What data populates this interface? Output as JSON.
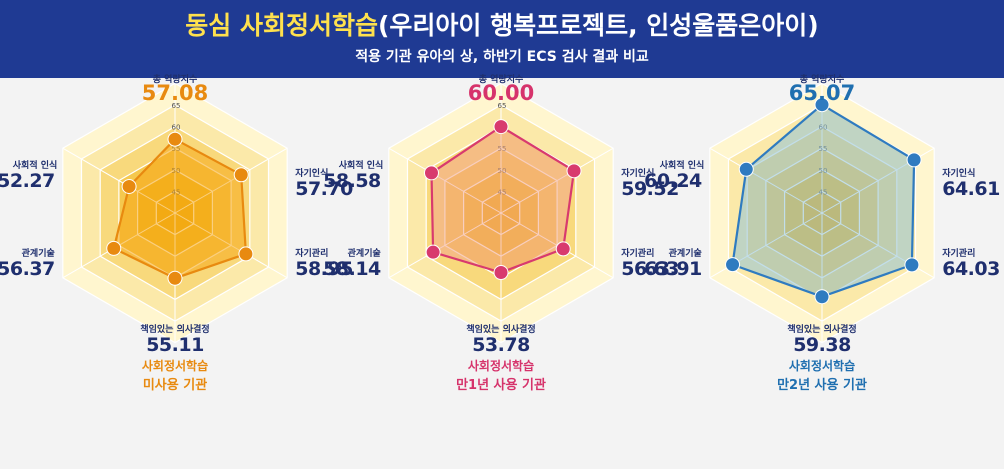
{
  "header": {
    "title_highlight": "동심 사회정서학습",
    "title_rest": "(우리아이 행복프로젝트, 인성울품은아이)",
    "subtitle": "적용 기관 유아의 상, 하반기 ECS 검사 결과 비교"
  },
  "chart_data": [
    {
      "type": "radar",
      "total_label": "총 역량지수",
      "total_value": "57.08",
      "group_line1": "사회정서학습",
      "group_line2": "미사용 기관",
      "axes": [
        "총 역량지수",
        "자기인식",
        "자기관리",
        "책임있는 의사결정",
        "관계기술",
        "사회적 인식"
      ],
      "values": [
        57.08,
        57.7,
        58.95,
        55.11,
        56.37,
        52.27
      ],
      "value_labels": [
        "57.08",
        "57.70",
        "58.95",
        "55.11",
        "56.37",
        "52.27"
      ],
      "tick_labels": [
        "45",
        "50",
        "55",
        "60",
        "65"
      ],
      "rlim": [
        40,
        65
      ],
      "series_color": "#e88a10",
      "fill_color": "#f6a817",
      "accent_color": "#e88a10"
    },
    {
      "type": "radar",
      "total_label": "총 역량지수",
      "total_value": "60.00",
      "group_line1": "사회정서학습",
      "group_line2": "만1년 사용 기관",
      "axes": [
        "총 역량지수",
        "자기인식",
        "자기관리",
        "책임있는 의사결정",
        "관계기술",
        "사회적 인식"
      ],
      "values": [
        60.0,
        59.52,
        56.63,
        53.78,
        58.14,
        58.58
      ],
      "value_labels": [
        "60.00",
        "59.52",
        "56.63",
        "53.78",
        "58.14",
        "58.58"
      ],
      "tick_labels": [
        "45",
        "50",
        "55",
        "60",
        "65"
      ],
      "rlim": [
        40,
        65
      ],
      "series_color": "#d83a6e",
      "fill_color": "#f3a68a",
      "accent_color": "#d6336b"
    },
    {
      "type": "radar",
      "total_label": "총 역량지수",
      "total_value": "65.07",
      "group_line1": "사회정서학습",
      "group_line2": "만2년 사용 기관",
      "axes": [
        "총 역량지수",
        "자기인식",
        "자기관리",
        "책임있는 의사결정",
        "관계기술",
        "사회적 인식"
      ],
      "values": [
        65.07,
        64.61,
        64.03,
        59.38,
        63.91,
        60.24
      ],
      "value_labels": [
        "65.07",
        "64.61",
        "64.03",
        "59.38",
        "63.91",
        "60.24"
      ],
      "tick_labels": [
        "45",
        "50",
        "55",
        "60",
        "65"
      ],
      "rlim": [
        40,
        65
      ],
      "series_color": "#2f7bc0",
      "fill_color": "#8fc3d8",
      "accent_color": "#1f6fb0"
    }
  ]
}
